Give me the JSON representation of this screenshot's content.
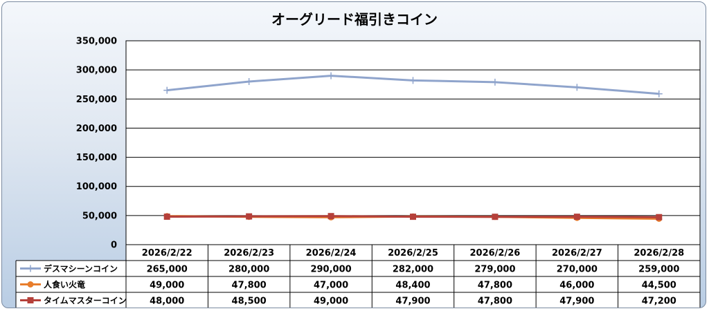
{
  "chart_data": {
    "type": "line",
    "title": "オーグリード福引きコイン",
    "categories": [
      "2026/2/22",
      "2026/2/23",
      "2026/2/24",
      "2026/2/25",
      "2026/2/26",
      "2026/2/27",
      "2026/2/28"
    ],
    "ylim": [
      0,
      350000
    ],
    "yticks": [
      "0",
      "50,000",
      "100,000",
      "150,000",
      "200,000",
      "250,000",
      "300,000",
      "350,000"
    ],
    "grid": true,
    "legend": "data-table",
    "series": [
      {
        "name": "デスマシーンコイン",
        "values": [
          265000,
          280000,
          290000,
          282000,
          279000,
          270000,
          259000
        ],
        "labels": [
          "265,000",
          "280,000",
          "290,000",
          "282,000",
          "279,000",
          "270,000",
          "259,000"
        ],
        "color": "#8fa4cc",
        "marker": "plus"
      },
      {
        "name": "人食い火竜",
        "values": [
          49000,
          47800,
          47000,
          48400,
          47800,
          46000,
          44500
        ],
        "labels": [
          "49,000",
          "47,800",
          "47,000",
          "48,400",
          "47,800",
          "46,000",
          "44,500"
        ],
        "color": "#e87d2c",
        "marker": "circle"
      },
      {
        "name": "タイムマスターコイン",
        "values": [
          48000,
          48500,
          49000,
          47900,
          47800,
          47900,
          47200
        ],
        "labels": [
          "48,000",
          "48,500",
          "49,000",
          "47,900",
          "47,800",
          "47,900",
          "47,200"
        ],
        "color": "#b5403a",
        "marker": "square"
      }
    ]
  }
}
